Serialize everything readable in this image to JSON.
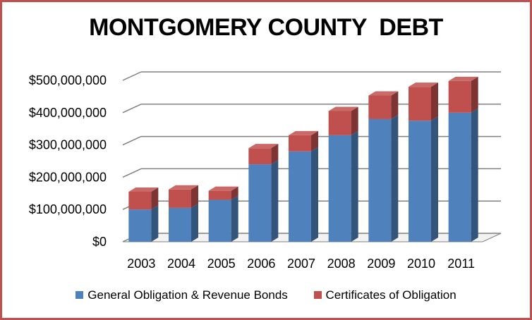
{
  "chart_data": {
    "type": "bar",
    "stacked": true,
    "style": "3d",
    "title": "MONTGOMERY COUNTY  DEBT",
    "categories": [
      "2003",
      "2004",
      "2005",
      "2006",
      "2007",
      "2008",
      "2009",
      "2010",
      "2011"
    ],
    "series": [
      {
        "name": "General Obligation & Revenue Bonds",
        "color": "#4f81bd",
        "values": [
          100000000,
          105000000,
          130000000,
          240000000,
          280000000,
          330000000,
          380000000,
          375000000,
          400000000
        ]
      },
      {
        "name": "Certificates of Obligation",
        "color": "#c0504d",
        "values": [
          55000000,
          57000000,
          28000000,
          50000000,
          50000000,
          75000000,
          73000000,
          105000000,
          98000000
        ]
      }
    ],
    "ylim": [
      0,
      500000000
    ],
    "yticks": [
      0,
      100000000,
      200000000,
      300000000,
      400000000,
      500000000
    ],
    "ytick_labels": [
      "$0",
      "$100,000,000",
      "$200,000,000",
      "$300,000,000",
      "$400,000,000",
      "$500,000,000"
    ],
    "xlabel": "",
    "ylabel": "",
    "grid": true,
    "legend_position": "bottom"
  }
}
